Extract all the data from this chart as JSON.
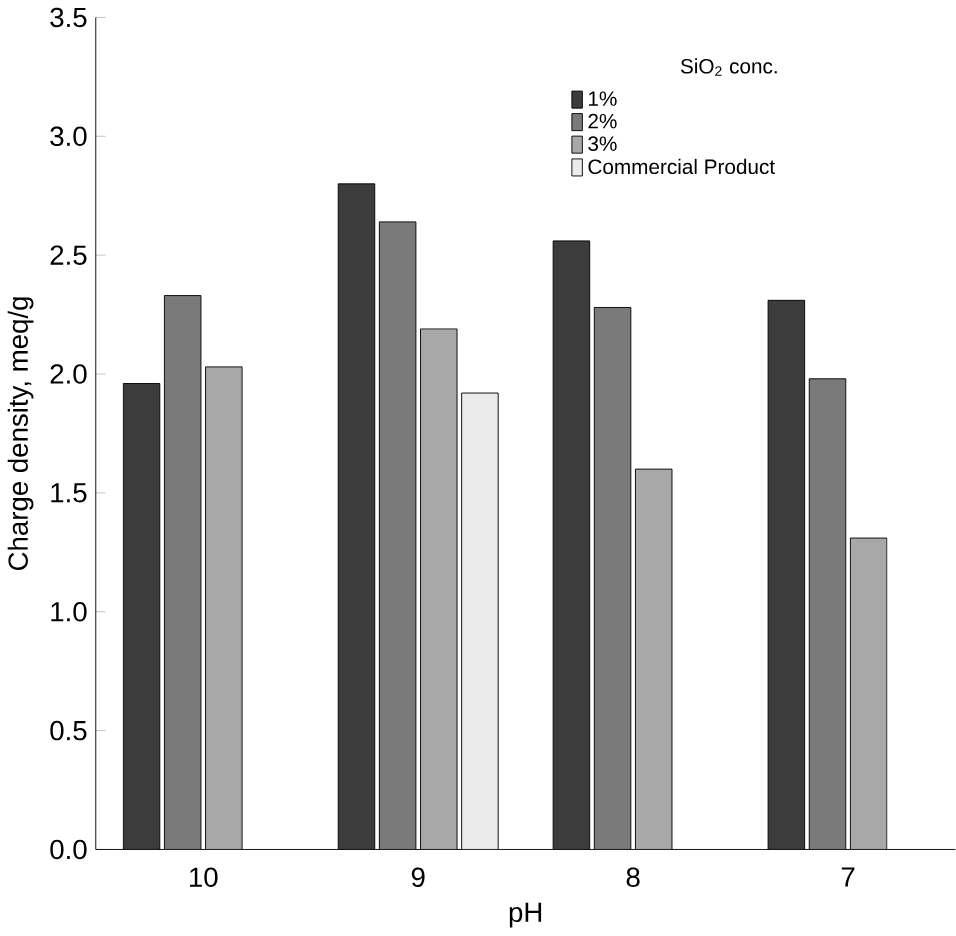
{
  "chart_data": {
    "type": "bar",
    "xlabel": "pH",
    "ylabel": "Charge density, meq/g",
    "legend_title": "SiO$_{2}$ conc.",
    "categories": [
      "10",
      "9",
      "8",
      "7"
    ],
    "series": [
      {
        "name": "1%",
        "color": "#3c3c3c",
        "values": [
          1.96,
          2.8,
          2.56,
          2.31
        ]
      },
      {
        "name": "2%",
        "color": "#7a7a7a",
        "values": [
          2.33,
          2.64,
          2.28,
          1.98
        ]
      },
      {
        "name": "3%",
        "color": "#a8a8a8",
        "values": [
          2.03,
          2.19,
          1.6,
          1.31
        ]
      },
      {
        "name": "Commercial Product",
        "color": "#ebebeb",
        "values": [
          null,
          1.92,
          null,
          null
        ]
      }
    ],
    "ylim": [
      0,
      3.5
    ],
    "yticks": [
      {
        "value": 0,
        "label": "0.0"
      },
      {
        "value": 0.5,
        "label": "0.5"
      },
      {
        "value": 1,
        "label": "1.0"
      },
      {
        "value": 1.5,
        "label": "1.5"
      },
      {
        "value": 2,
        "label": "2.0"
      },
      {
        "value": 2.5,
        "label": "2.5"
      },
      {
        "value": 3,
        "label": "3.0"
      },
      {
        "value": 3.5,
        "label": "3.5"
      }
    ],
    "grid": false,
    "legend": "top right"
  }
}
